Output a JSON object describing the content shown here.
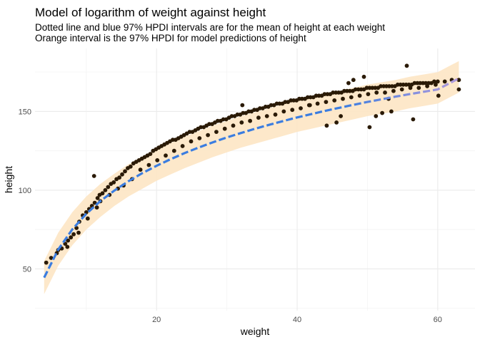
{
  "chart_data": {
    "type": "scatter",
    "title": "Model of logarithm of weight against height",
    "subtitle_lines": [
      "Dotted line and blue 97% HPDI intervals are for the mean of height at each weight",
      "Orange interval is the 97% HPDI for model predictions of height"
    ],
    "xlabel": "weight",
    "ylabel": "height",
    "xlim": [
      2.7,
      65.3
    ],
    "ylim": [
      23.5,
      190
    ],
    "x_ticks": [
      20,
      40,
      60
    ],
    "y_ticks": [
      50,
      100,
      150
    ],
    "grid": true,
    "colors": {
      "points": "#2a1a06",
      "prediction_band": "#fde5c4",
      "mean_line": "#3b7de0",
      "mean_line_end": "#b39bdc",
      "grid_major": "#ebebeb",
      "grid_minor": "#f4f4f4"
    },
    "mean_curve": {
      "x": [
        4,
        6,
        8,
        10,
        12,
        14,
        16,
        18,
        20,
        22,
        24,
        26,
        28,
        30,
        32,
        34,
        36,
        38,
        40,
        42,
        44,
        46,
        48,
        50,
        52,
        54,
        56,
        58,
        60,
        63
      ],
      "y": [
        44.5,
        62.3,
        75.1,
        85.0,
        93.1,
        99.8,
        105.7,
        110.9,
        115.5,
        119.7,
        123.6,
        127.1,
        130.4,
        133.5,
        136.3,
        139.0,
        141.5,
        143.9,
        146.2,
        148.3,
        150.4,
        152.3,
        154.2,
        156.0,
        157.7,
        159.4,
        161.0,
        162.5,
        164.0,
        171.0
      ]
    },
    "prediction_band": {
      "x": [
        4,
        6,
        8,
        10,
        12,
        14,
        16,
        18,
        20,
        22,
        24,
        26,
        28,
        30,
        32,
        34,
        36,
        38,
        40,
        42,
        44,
        46,
        48,
        50,
        52,
        54,
        56,
        58,
        60,
        63
      ],
      "lower": [
        34,
        52,
        65,
        75,
        83,
        90,
        96,
        101,
        106,
        110,
        114,
        117.5,
        121,
        124,
        127,
        129.5,
        132,
        134.5,
        137,
        139,
        141,
        143,
        145,
        147,
        148.5,
        150,
        152,
        153.5,
        155,
        162
      ],
      "upper": [
        55,
        73,
        86,
        96,
        104,
        110.5,
        116.5,
        121.5,
        126,
        130,
        134,
        137.5,
        141,
        144,
        147,
        149.5,
        152,
        154.5,
        157,
        159,
        161,
        163,
        165,
        167,
        168.5,
        170,
        172,
        173.5,
        175,
        182
      ]
    },
    "points": {
      "x": [
        4.3,
        5.0,
        5.8,
        6.5,
        7.0,
        7.4,
        7.8,
        8.2,
        8.6,
        9.0,
        9.5,
        10.0,
        10.4,
        10.8,
        11.2,
        11.6,
        11.9,
        12.3,
        12.7,
        13.1,
        13.5,
        13.9,
        14.3,
        14.7,
        15.1,
        15.5,
        15.9,
        16.3,
        16.7,
        17.1,
        17.5,
        17.9,
        18.3,
        18.7,
        19.1,
        19.5,
        19.9,
        20.3,
        20.7,
        21.1,
        21.5,
        21.9,
        22.3,
        22.7,
        23.1,
        23.5,
        23.9,
        24.3,
        24.7,
        25.1,
        25.5,
        25.9,
        26.3,
        26.7,
        27.1,
        27.5,
        27.9,
        28.3,
        28.7,
        29.1,
        29.5,
        29.9,
        30.3,
        30.7,
        31.1,
        31.5,
        31.9,
        32.3,
        32.7,
        33.1,
        33.5,
        33.9,
        34.3,
        34.7,
        35.1,
        35.5,
        35.9,
        36.3,
        36.7,
        37.1,
        37.5,
        37.9,
        38.3,
        38.7,
        39.1,
        39.5,
        39.9,
        40.3,
        40.7,
        41.1,
        41.5,
        41.9,
        42.3,
        42.7,
        43.1,
        43.5,
        43.9,
        44.3,
        44.7,
        45.1,
        45.5,
        45.9,
        46.3,
        46.7,
        47.1,
        47.5,
        47.9,
        48.3,
        48.7,
        49.1,
        49.5,
        49.9,
        50.3,
        50.7,
        51.1,
        51.5,
        51.9,
        52.3,
        52.7,
        53.1,
        53.5,
        53.9,
        54.3,
        54.7,
        55.1,
        55.5,
        55.9,
        56.3,
        56.7,
        57.1,
        57.5,
        57.9,
        58.3,
        58.7,
        59.1,
        59.5,
        60.0,
        61.0,
        62.0,
        63.0,
        6.0,
        7.3,
        8.9,
        10.2,
        11.5,
        12.0,
        13.3,
        14.5,
        15.3,
        16.5,
        17.7,
        18.9,
        20.1,
        21.3,
        22.5,
        23.7,
        24.9,
        26.1,
        27.3,
        28.5,
        29.7,
        30.9,
        32.1,
        33.3,
        34.5,
        35.7,
        36.9,
        38.1,
        39.3,
        40.5,
        41.7,
        42.9,
        44.1,
        45.3,
        46.5,
        47.7,
        48.9,
        50.1,
        51.3,
        52.5,
        53.7,
        54.9,
        56.1,
        57.3,
        58.5,
        59.7,
        11.1,
        32.2,
        44.2,
        50.3,
        55.6,
        60.1,
        48.0,
        52.1,
        46.2,
        41.8,
        53.4,
        63.0,
        49.5,
        47.3,
        45.6,
        51.2,
        53.0,
        56.5
      ],
      "y": [
        54,
        57,
        60,
        63,
        66,
        68,
        70,
        72,
        76,
        80,
        84,
        86,
        88,
        90,
        92,
        95,
        97,
        98,
        100,
        102,
        104,
        105,
        107,
        108,
        110,
        112,
        114,
        115,
        117,
        118,
        119,
        120,
        121,
        122,
        123,
        125,
        126,
        127,
        128,
        129,
        130,
        131,
        132,
        132,
        133,
        134,
        135,
        136,
        137,
        137,
        138,
        139,
        140,
        140,
        141,
        142,
        142,
        143,
        144,
        144,
        145,
        145,
        146,
        147,
        147,
        148,
        148,
        149,
        149,
        150,
        150,
        151,
        151,
        152,
        152,
        153,
        153,
        154,
        154,
        155,
        155,
        155,
        156,
        156,
        157,
        157,
        157,
        158,
        158,
        158,
        159,
        159,
        159,
        160,
        160,
        160,
        161,
        161,
        161,
        162,
        162,
        162,
        162,
        163,
        163,
        163,
        163,
        164,
        164,
        164,
        164,
        165,
        165,
        165,
        165,
        165,
        166,
        166,
        166,
        166,
        166,
        166,
        167,
        167,
        167,
        167,
        167,
        167,
        168,
        168,
        168,
        168,
        168,
        168,
        168,
        169,
        169,
        169,
        170,
        170,
        62,
        64,
        73,
        82,
        89,
        93,
        97,
        101,
        103,
        107,
        113,
        116,
        119,
        122,
        125,
        128,
        131,
        133,
        135,
        137,
        139,
        141,
        143,
        144,
        146,
        147,
        148,
        150,
        151,
        152,
        154,
        155,
        156,
        157,
        158,
        159,
        160,
        161,
        162,
        162,
        163,
        164,
        165,
        165,
        166,
        167,
        109,
        154,
        141,
        140,
        179,
        160,
        170,
        149,
        147,
        154,
        150,
        164,
        172,
        168,
        143,
        147,
        158,
        145
      ]
    }
  }
}
